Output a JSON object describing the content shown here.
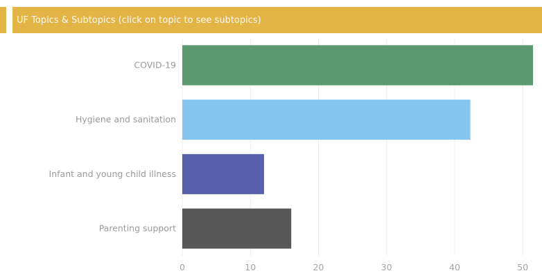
{
  "header": {
    "title": "UF Topics & Subtopics (click on topic to see subtopics)",
    "bar_color": "#e3b446"
  },
  "chart_data": {
    "type": "bar",
    "orientation": "horizontal",
    "categories": [
      "COVID-19",
      "Hygiene and sanitation",
      "Infant and young child illness",
      "Parenting support"
    ],
    "values": [
      51.5,
      42.3,
      12,
      16
    ],
    "colors": [
      "#5a9a6e",
      "#86c5ef",
      "#5860ad",
      "#575757"
    ],
    "xlim": [
      0,
      51.5
    ],
    "xticks": [
      0,
      10,
      20,
      30,
      40,
      50
    ],
    "title": "UF Topics & Subtopics (click on topic to see subtopics)",
    "xlabel": "",
    "ylabel": "",
    "grid": true,
    "legend": "none"
  }
}
